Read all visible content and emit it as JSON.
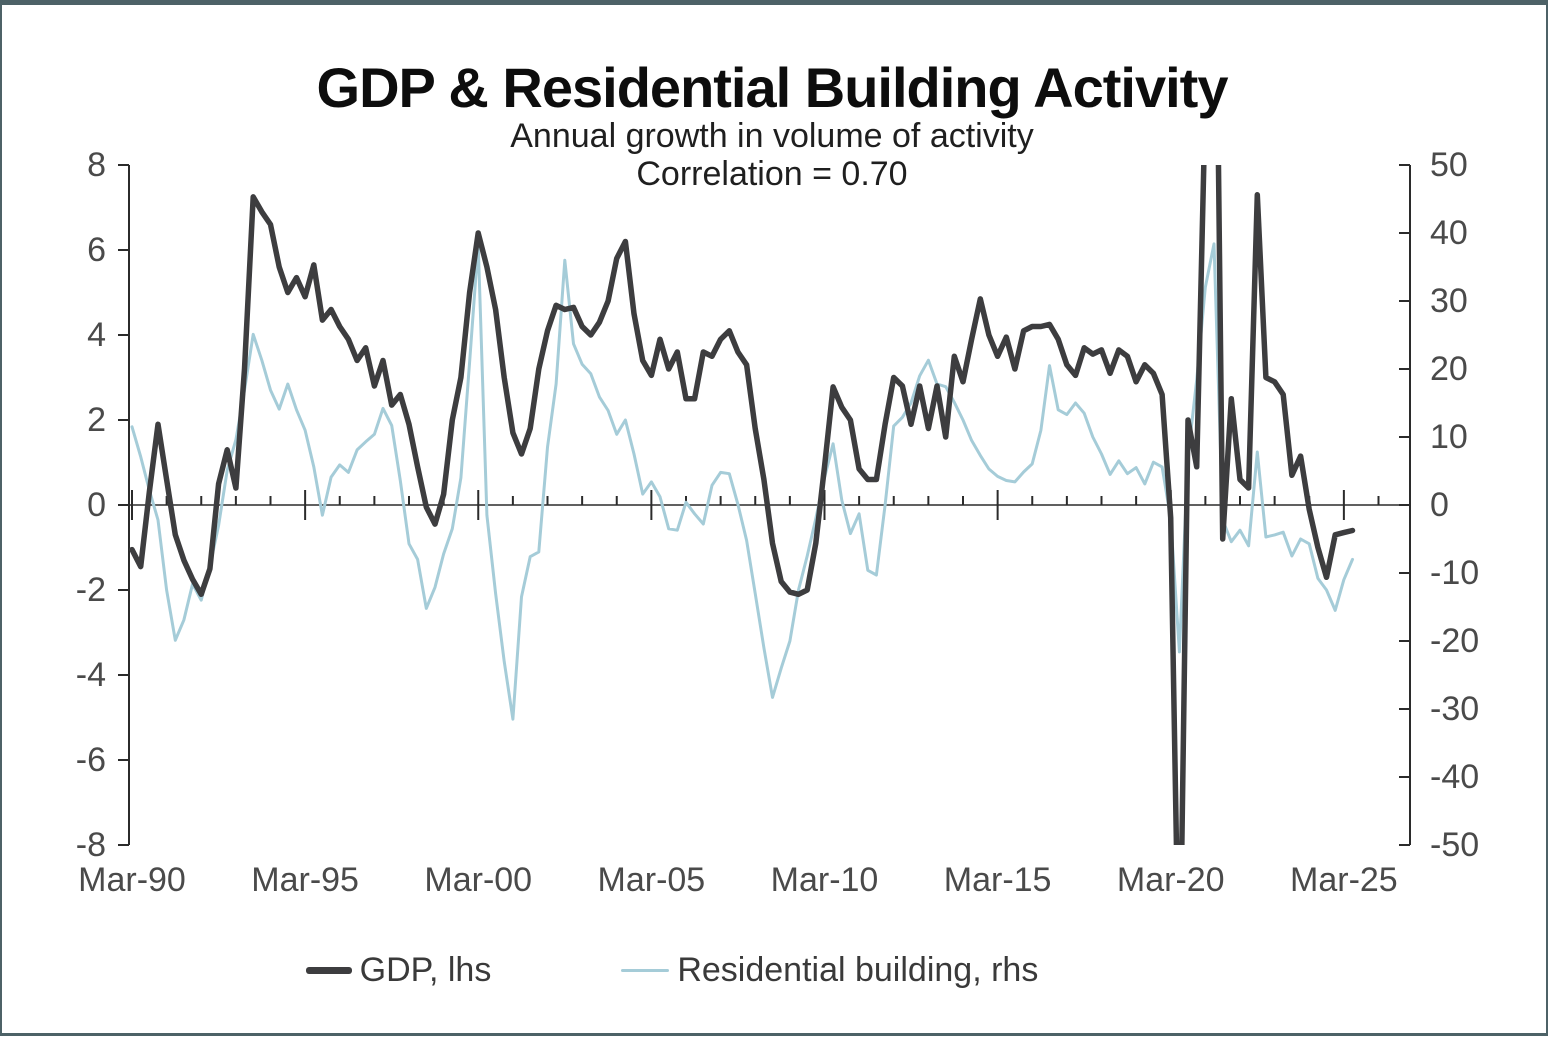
{
  "header": {
    "title": "GDP & Residential Building Activity",
    "subtitle": "Annual growth in volume of activity",
    "correlation": "Correlation = 0.70"
  },
  "legend": {
    "items": [
      {
        "label": "GDP, lhs",
        "color": "#3d3d3f",
        "thickness": 7,
        "swatch_width": 46
      },
      {
        "label": "Residential building, rhs",
        "color": "#a5ccd8",
        "thickness": 3.5,
        "swatch_width": 48
      }
    ]
  },
  "axes": {
    "left": {
      "labels": [
        "8",
        "6",
        "4",
        "2",
        "0",
        "-2",
        "-4",
        "-6",
        "-8"
      ]
    },
    "right": {
      "labels": [
        "50",
        "40",
        "30",
        "20",
        "10",
        "0",
        "-10",
        "-20",
        "-30",
        "-40",
        "-50"
      ]
    },
    "x": {
      "labels": [
        "Mar-90",
        "Mar-95",
        "Mar-00",
        "Mar-05",
        "Mar-10",
        "Mar-15",
        "Mar-20",
        "Mar-25"
      ]
    }
  },
  "colors": {
    "gdp_line": "#3d3d3f",
    "residential_line": "#a5ccd8",
    "axis": "#2b2b2b",
    "frame": "#4d6267",
    "tick_text": "#4a4a4a"
  },
  "chart_data": {
    "type": "line",
    "title": "GDP & Residential Building Activity",
    "subtitle": "Annual growth in volume of activity",
    "annotation": "Correlation = 0.70",
    "x_unit": "quarter",
    "x_start": "Mar-1990",
    "x_end": "Jun-2025",
    "x_tick_labels": [
      "Mar-90",
      "Mar-95",
      "Mar-00",
      "Mar-05",
      "Mar-10",
      "Mar-15",
      "Mar-20",
      "Mar-25"
    ],
    "left_ylim": [
      -8,
      8
    ],
    "right_ylim": [
      -50,
      50
    ],
    "grid": false,
    "legend_position": "bottom",
    "clip_to_axes": true,
    "series": [
      {
        "name": "GDP, lhs",
        "axis": "left",
        "color": "#3d3d3f",
        "line_width": 5.5,
        "values": [
          -1.05,
          -1.45,
          0.3,
          1.9,
          0.6,
          -0.7,
          -1.3,
          -1.75,
          -2.1,
          -1.5,
          0.5,
          1.3,
          0.4,
          3.2,
          7.25,
          6.9,
          6.6,
          5.6,
          5.0,
          5.35,
          4.9,
          5.65,
          4.35,
          4.6,
          4.2,
          3.9,
          3.4,
          3.7,
          2.8,
          3.4,
          2.35,
          2.6,
          1.9,
          0.9,
          -0.05,
          -0.45,
          0.25,
          2.0,
          3.0,
          5.0,
          6.4,
          5.6,
          4.6,
          3.0,
          1.7,
          1.2,
          1.8,
          3.2,
          4.1,
          4.7,
          4.6,
          4.65,
          4.2,
          4.0,
          4.3,
          4.8,
          5.8,
          6.2,
          4.5,
          3.4,
          3.05,
          3.9,
          3.2,
          3.6,
          2.5,
          2.5,
          3.6,
          3.5,
          3.9,
          4.1,
          3.6,
          3.3,
          1.8,
          0.6,
          -0.9,
          -1.8,
          -2.05,
          -2.1,
          -2.0,
          -0.9,
          0.9,
          2.78,
          2.3,
          2.0,
          0.85,
          0.6,
          0.6,
          1.9,
          3.0,
          2.8,
          1.9,
          2.8,
          1.8,
          2.8,
          1.6,
          3.5,
          2.9,
          3.9,
          4.85,
          4.0,
          3.5,
          3.95,
          3.2,
          4.1,
          4.2,
          4.2,
          4.25,
          3.9,
          3.3,
          3.05,
          3.7,
          3.55,
          3.65,
          3.1,
          3.65,
          3.5,
          2.9,
          3.3,
          3.1,
          2.6,
          -0.3,
          -12.0,
          2.0,
          0.9,
          9.5,
          17.3,
          -0.8,
          2.5,
          0.6,
          0.4,
          7.3,
          3.0,
          2.9,
          2.6,
          0.7,
          1.15,
          -0.1,
          -1.0,
          -1.7,
          -0.7,
          -0.65,
          -0.6
        ]
      },
      {
        "name": "Residential building, rhs",
        "axis": "right",
        "color": "#a5ccd8",
        "line_width": 3,
        "values": [
          11.5,
          7.1,
          2.2,
          -2.2,
          -12.5,
          -19.9,
          -16.9,
          -11.6,
          -14.0,
          -9.0,
          -3.0,
          5.1,
          9.6,
          16.9,
          25.1,
          21.3,
          16.9,
          14.1,
          17.8,
          14.0,
          11.0,
          5.6,
          -1.5,
          4.1,
          5.9,
          4.8,
          8.1,
          9.3,
          10.4,
          14.2,
          11.7,
          3.6,
          -5.7,
          -8.0,
          -15.2,
          -12.1,
          -7.2,
          -3.5,
          4.0,
          21.0,
          38.4,
          -1.5,
          -13.0,
          -23.0,
          -31.5,
          -13.5,
          -7.6,
          -6.9,
          8.5,
          17.8,
          36.0,
          23.7,
          20.7,
          19.3,
          15.9,
          13.9,
          10.4,
          12.5,
          7.5,
          1.6,
          3.4,
          1.2,
          -3.5,
          -3.7,
          0.4,
          -1.3,
          -2.8,
          2.9,
          4.8,
          4.6,
          0.1,
          -5.2,
          -13.0,
          -21.0,
          -28.3,
          -24.0,
          -20.0,
          -12.5,
          -7.5,
          -2.0,
          4.0,
          9.0,
          0.7,
          -4.2,
          -1.3,
          -9.6,
          -10.3,
          0.0,
          11.6,
          12.9,
          15.0,
          19.0,
          21.3,
          17.8,
          17.4,
          15.1,
          12.5,
          9.5,
          7.3,
          5.3,
          4.2,
          3.6,
          3.4,
          4.85,
          6.05,
          11.0,
          20.5,
          14.0,
          13.3,
          15.0,
          13.5,
          10.0,
          7.5,
          4.5,
          6.5,
          4.6,
          5.5,
          3.1,
          6.3,
          5.6,
          -2.0,
          -21.6,
          7.1,
          18.4,
          32.0,
          38.4,
          -2.2,
          -5.4,
          -3.7,
          -6.0,
          7.8,
          -4.7,
          -4.4,
          -4.0,
          -7.5,
          -5.0,
          -5.7,
          -10.8,
          -12.5,
          -15.5,
          -11.0,
          -8.0
        ]
      }
    ]
  }
}
